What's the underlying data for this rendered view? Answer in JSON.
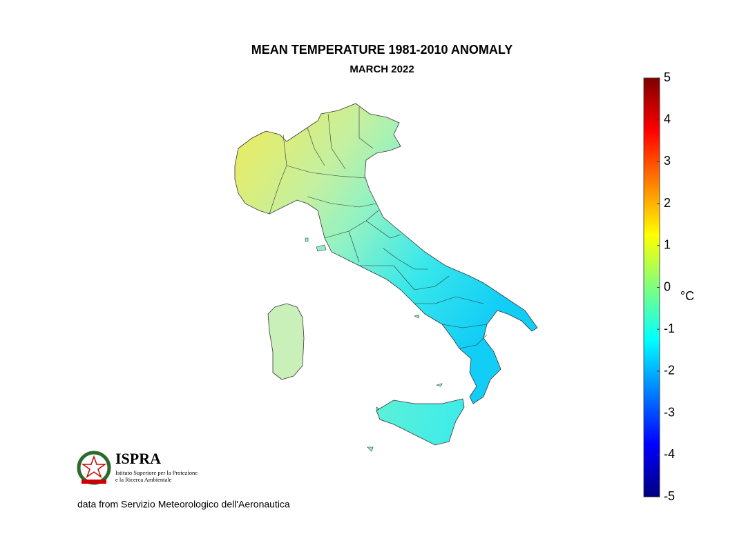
{
  "title": "MEAN TEMPERATURE 1981-2010 ANOMALY",
  "subtitle": "MARCH 2022",
  "colorbar": {
    "label": "°C",
    "lim": [
      -5,
      5
    ],
    "ticks": [
      -5,
      -4,
      -3,
      -2,
      -1,
      0,
      1,
      2,
      3,
      4,
      5
    ]
  },
  "logo": {
    "name": "ISPRA",
    "line1": "Istituto Superiore per la Protezione",
    "line2": "e la Ricerca Ambientale"
  },
  "source": "data from Servizio Meteorologico dell'Aeronautica"
}
